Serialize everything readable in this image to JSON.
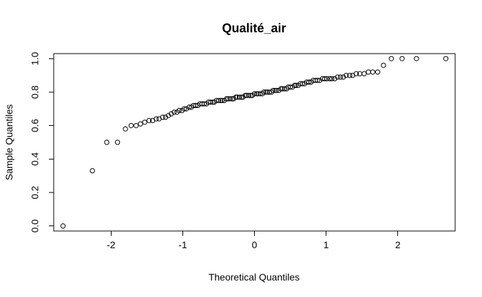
{
  "chart_data": {
    "type": "scatter",
    "title": "Qualité_air",
    "xlabel": "Theoretical Quantiles",
    "ylabel": "Sample Quantiles",
    "xlim": [
      -2.8,
      2.8
    ],
    "ylim": [
      -0.03,
      1.03
    ],
    "xticks": [
      -2,
      -1,
      0,
      1,
      2
    ],
    "xtick_labels": [
      "-2",
      "-1",
      "0",
      "1",
      "2"
    ],
    "yticks": [
      0.0,
      0.2,
      0.4,
      0.6,
      0.8,
      1.0
    ],
    "ytick_labels": [
      "0.0",
      "0.2",
      "0.4",
      "0.6",
      "0.8",
      "1.0"
    ],
    "grid": false,
    "legend": "none",
    "point_color": "#000000",
    "x": [
      -2.67,
      -2.26,
      -2.06,
      -1.91,
      -1.8,
      -1.72,
      -1.65,
      -1.59,
      -1.53,
      -1.47,
      -1.42,
      -1.37,
      -1.33,
      -1.28,
      -1.24,
      -1.2,
      -1.16,
      -1.12,
      -1.08,
      -1.05,
      -1.01,
      -0.98,
      -0.95,
      -0.91,
      -0.88,
      -0.85,
      -0.82,
      -0.79,
      -0.76,
      -0.73,
      -0.7,
      -0.67,
      -0.64,
      -0.61,
      -0.58,
      -0.56,
      -0.53,
      -0.5,
      -0.47,
      -0.45,
      -0.42,
      -0.39,
      -0.37,
      -0.34,
      -0.31,
      -0.29,
      -0.26,
      -0.24,
      -0.21,
      -0.18,
      -0.16,
      -0.13,
      -0.11,
      -0.08,
      -0.05,
      -0.03,
      0.0,
      0.03,
      0.05,
      0.08,
      0.11,
      0.13,
      0.16,
      0.18,
      0.21,
      0.24,
      0.26,
      0.29,
      0.31,
      0.34,
      0.37,
      0.39,
      0.42,
      0.45,
      0.47,
      0.5,
      0.53,
      0.56,
      0.58,
      0.61,
      0.64,
      0.67,
      0.7,
      0.73,
      0.76,
      0.79,
      0.82,
      0.85,
      0.88,
      0.91,
      0.95,
      0.98,
      1.01,
      1.05,
      1.08,
      1.12,
      1.16,
      1.2,
      1.24,
      1.28,
      1.33,
      1.37,
      1.42,
      1.47,
      1.53,
      1.59,
      1.65,
      1.72,
      1.8,
      1.91,
      2.06,
      2.26,
      2.67
    ],
    "y": [
      0.0,
      0.33,
      0.5,
      0.5,
      0.58,
      0.6,
      0.6,
      0.61,
      0.62,
      0.63,
      0.63,
      0.64,
      0.64,
      0.65,
      0.65,
      0.66,
      0.67,
      0.68,
      0.68,
      0.69,
      0.69,
      0.7,
      0.7,
      0.71,
      0.71,
      0.72,
      0.72,
      0.72,
      0.73,
      0.73,
      0.73,
      0.73,
      0.74,
      0.74,
      0.74,
      0.74,
      0.75,
      0.75,
      0.75,
      0.75,
      0.75,
      0.76,
      0.76,
      0.76,
      0.76,
      0.76,
      0.77,
      0.77,
      0.77,
      0.77,
      0.77,
      0.78,
      0.78,
      0.78,
      0.78,
      0.78,
      0.79,
      0.79,
      0.79,
      0.79,
      0.79,
      0.8,
      0.8,
      0.8,
      0.8,
      0.8,
      0.81,
      0.81,
      0.81,
      0.81,
      0.82,
      0.82,
      0.82,
      0.82,
      0.83,
      0.83,
      0.83,
      0.84,
      0.84,
      0.84,
      0.85,
      0.85,
      0.85,
      0.86,
      0.86,
      0.86,
      0.87,
      0.87,
      0.87,
      0.87,
      0.88,
      0.88,
      0.88,
      0.88,
      0.88,
      0.88,
      0.89,
      0.89,
      0.89,
      0.9,
      0.9,
      0.9,
      0.91,
      0.91,
      0.91,
      0.92,
      0.92,
      0.92,
      0.96,
      1.0,
      1.0,
      1.0,
      1.0
    ]
  }
}
